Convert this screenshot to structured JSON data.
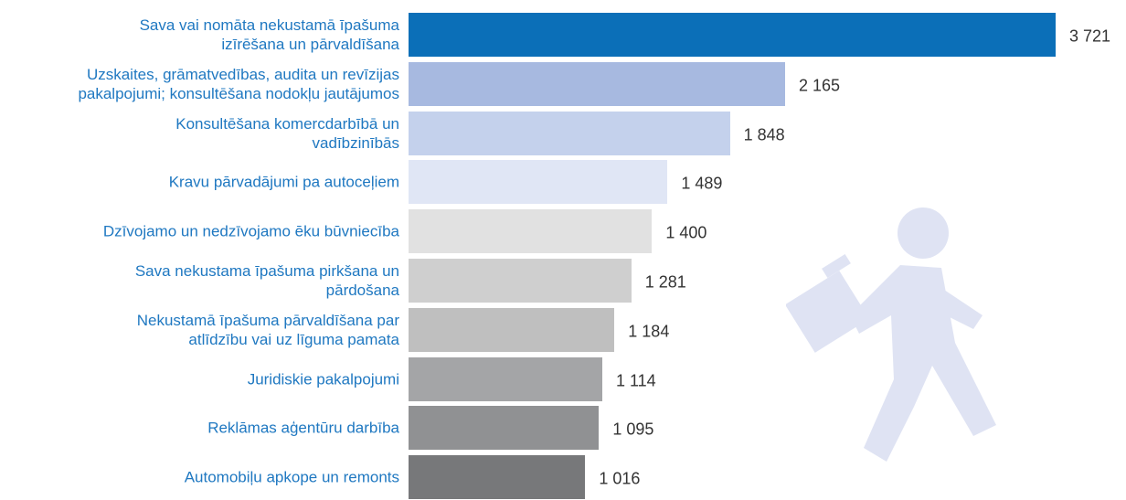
{
  "chart_data": {
    "type": "bar",
    "orientation": "horizontal",
    "categories": [
      "Sava vai nomāta nekustamā īpašuma\nizīrēšana un pārvaldīšana",
      "Uzskaites, grāmatvedības, audita un revīzijas\npakalpojumi; konsultēšana nodokļu jautājumos",
      "Konsultēšana komercdarbībā un\nvadībzinībās",
      "Kravu pārvadājumi pa autoceļiem",
      "Dzīvojamo un nedzīvojamo ēku būvniecība",
      "Sava nekustama īpašuma pirkšana un\npārdošana",
      "Nekustamā īpašuma pārvaldīšana par\natlīdzību vai uz līguma pamata",
      "Juridiskie pakalpojumi",
      "Reklāmas aģentūru darbība",
      "Automobiļu apkope un remonts"
    ],
    "values": [
      3721,
      2165,
      1848,
      1489,
      1400,
      1281,
      1184,
      1114,
      1095,
      1016
    ],
    "value_labels": [
      "3 721",
      "2 165",
      "1 848",
      "1 489",
      "1 400",
      "1 281",
      "1 184",
      "1 114",
      "1 095",
      "1 016"
    ],
    "colors": [
      "#0b6fb8",
      "#a7b9e0",
      "#c4d1ec",
      "#e0e6f5",
      "#e1e1e1",
      "#cfcfcf",
      "#bfbfbf",
      "#a4a5a7",
      "#909193",
      "#77787a"
    ]
  }
}
